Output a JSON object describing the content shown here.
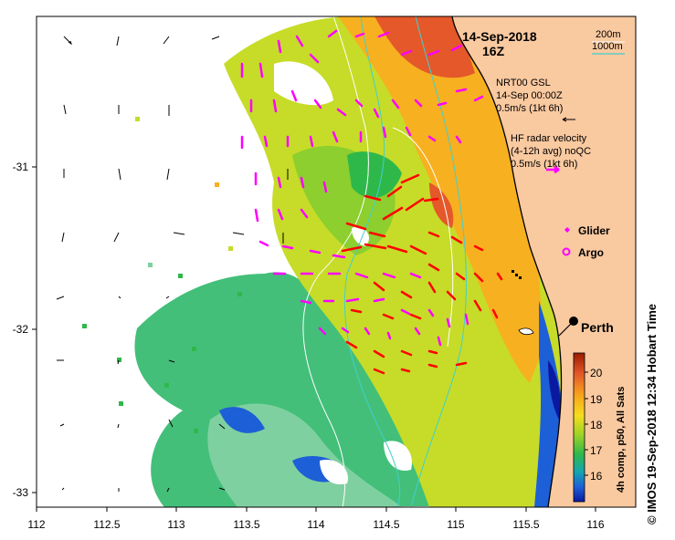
{
  "map": {
    "title_date": "14-Sep-2018",
    "title_time": "16Z",
    "lon_ticks": [
      "112",
      "112.5",
      "113",
      "113.5",
      "114",
      "114.5",
      "115",
      "115.5",
      "116"
    ],
    "lat_ticks": [
      "-31",
      "-32",
      "-33"
    ],
    "bathymetry_legend": {
      "line1": "200m",
      "line2": "1000m",
      "color_line1": "#ffffff",
      "color_line2": "#40d0d0"
    },
    "vector_legend": {
      "model_title": "NRT00 GSL",
      "model_date": "14-Sep 00:00Z",
      "model_scale": "0.5m/s (1kt 6h)",
      "model_color": "#000000",
      "radar_title": "HF radar velocity",
      "radar_avg": "(4-12h avg) noQC",
      "radar_scale": "0.5m/s (1kt 6h)",
      "radar_color": "#ff00ff"
    },
    "markers": {
      "glider_label": "Glider",
      "argo_label": "Argo",
      "city_label": "Perth",
      "marker_color": "#ff00ff"
    },
    "colorbar": {
      "ticks": [
        "20",
        "19",
        "18",
        "17",
        "16"
      ],
      "caption": "4h comp, p50, All Sats",
      "gradient": [
        "#9b1c00",
        "#e4582a",
        "#f7a21d",
        "#f6dc1d",
        "#9ed326",
        "#2fb84a",
        "#14a5b0",
        "#1d5fd6",
        "#0a1aa0"
      ]
    },
    "credit": "© IMOS 19-Sep-2018 12:34 Hobart Time",
    "colors": {
      "land": "#f9c9a0",
      "coast": "#000000",
      "model_arrow": "#000000",
      "radar_arrow": "#ff00ff",
      "strong_arrow": "#ff0000"
    }
  }
}
